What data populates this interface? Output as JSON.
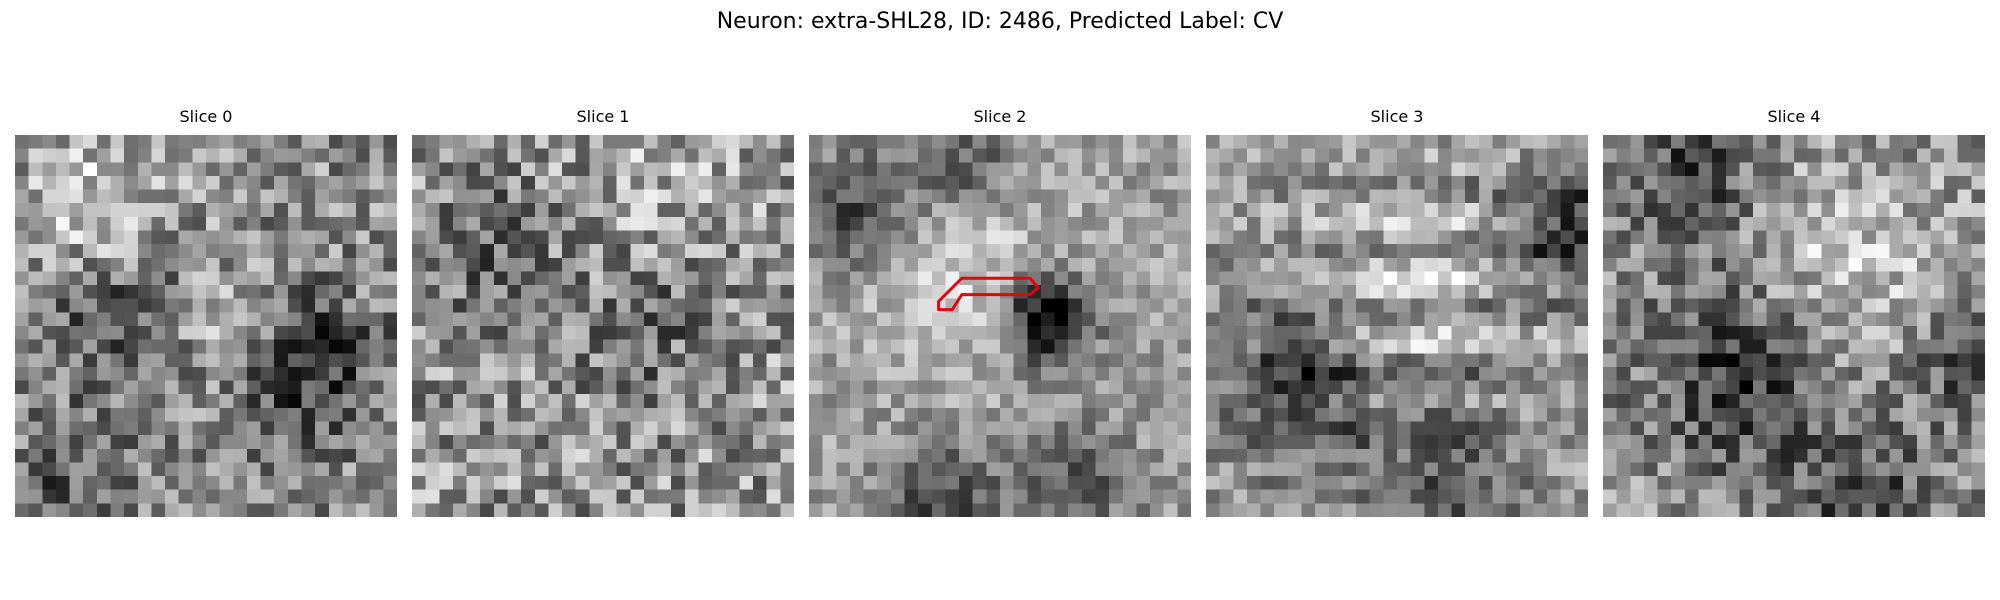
{
  "figure": {
    "title": "Neuron: extra-SHL28, ID: 2486, Predicted Label: CV"
  },
  "slices": [
    {
      "title": "Slice 0",
      "seed": 11,
      "pattern": "mottled"
    },
    {
      "title": "Slice 1",
      "seed": 23,
      "pattern": "uniform-noise"
    },
    {
      "title": "Slice 2",
      "seed": 37,
      "pattern": "bright-center-dark-spot",
      "has_roi": true
    },
    {
      "title": "Slice 3",
      "seed": 51,
      "pattern": "horizontal-streaks"
    },
    {
      "title": "Slice 4",
      "seed": 67,
      "pattern": "dark-lower-left"
    }
  ],
  "image_grid": {
    "cells": 28,
    "colormap": "gray"
  },
  "roi": {
    "color": "#e8000b",
    "outline_cells": [
      [
        9.5,
        12.2
      ],
      [
        11.2,
        10.5
      ],
      [
        16.2,
        10.5
      ],
      [
        16.8,
        11.2
      ],
      [
        16.2,
        11.7
      ],
      [
        11.2,
        11.7
      ],
      [
        10.5,
        12.8
      ],
      [
        9.5,
        12.8
      ]
    ]
  }
}
